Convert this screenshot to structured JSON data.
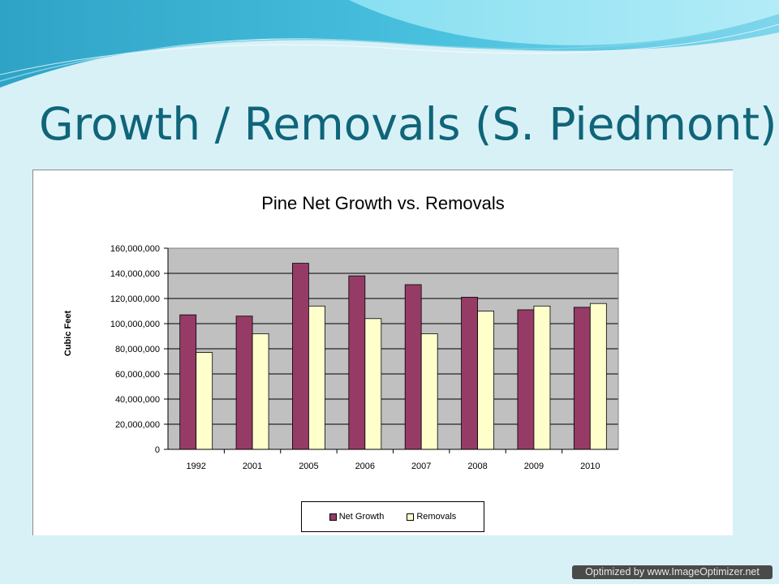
{
  "slide": {
    "title": "Growth / Removals (S. Piedmont)"
  },
  "watermark": {
    "text": "Optimized by www.ImageOptimizer.net"
  },
  "colors": {
    "net_growth": "#953b66",
    "removals": "#ffffcc",
    "plot_background": "#c0c0c0",
    "title_color": "#0f6579",
    "page_background": "#d8f1f7"
  },
  "legend": {
    "items": [
      "Net Growth",
      "Removals"
    ],
    "placement": "bottom"
  },
  "chart_data": {
    "type": "bar",
    "title": "Pine Net Growth vs. Removals",
    "xlabel": "",
    "ylabel": "Cubic Feet",
    "categories": [
      "1992",
      "2001",
      "2005",
      "2006",
      "2007",
      "2008",
      "2009",
      "2010"
    ],
    "series": [
      {
        "name": "Net Growth",
        "values": [
          107000000,
          106000000,
          148000000,
          138000000,
          131000000,
          121000000,
          111000000,
          113000000
        ]
      },
      {
        "name": "Removals",
        "values": [
          77000000,
          92000000,
          114000000,
          104000000,
          92000000,
          110000000,
          114000000,
          116000000
        ]
      }
    ],
    "ylim": [
      0,
      160000000
    ],
    "y_ticks": [
      "0",
      "20,000,000",
      "40,000,000",
      "60,000,000",
      "80,000,000",
      "100,000,000",
      "120,000,000",
      "140,000,000",
      "160,000,000"
    ],
    "grid": true,
    "legend_position": "bottom"
  }
}
